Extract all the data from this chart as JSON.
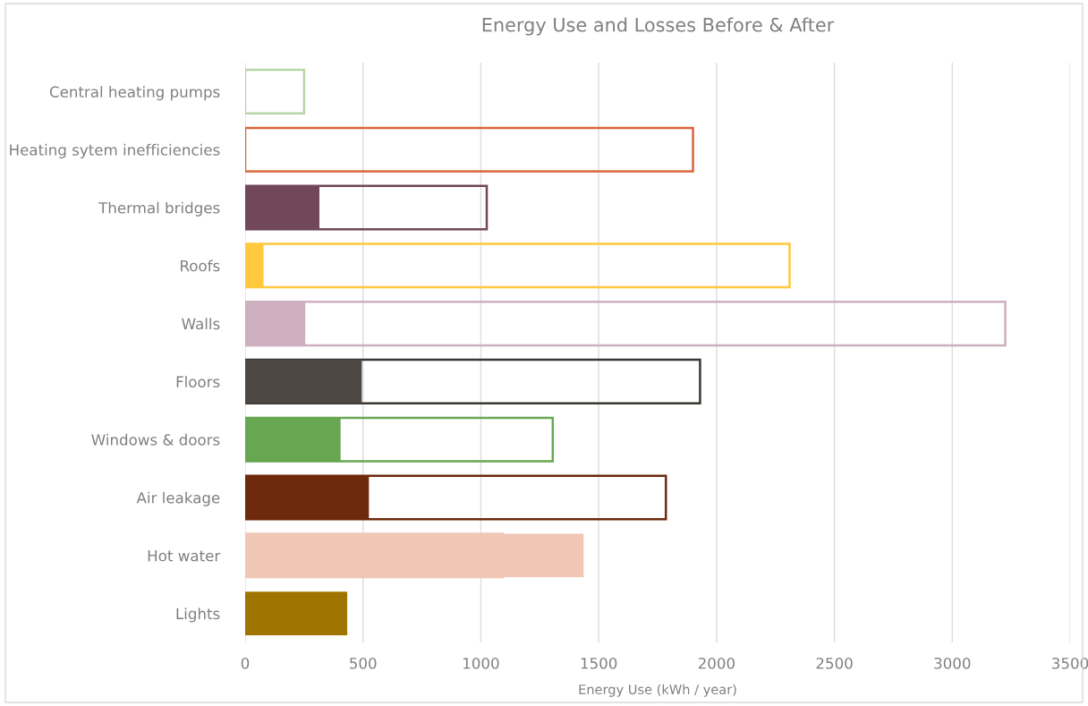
{
  "chart_data": {
    "type": "bar",
    "orientation": "horizontal",
    "title": "Energy Use and Losses Before & After",
    "xlabel": "Energy Use (kWh / year)",
    "categories": [
      "Central heating pumps",
      "Heating sytem inefficiencies",
      "Thermal bridges",
      "Roofs",
      "Walls",
      "Floors",
      "Windows & doors",
      "Air leakage",
      "Hot water",
      "Lights"
    ],
    "series": [
      {
        "line_style": "solid",
        "colors": [
          "#b5d6a7",
          "#d9663a",
          "#71475a",
          "#ffc83d",
          "#cdafbf",
          "#3a3733",
          "#67a752",
          "#6e2a0c",
          "#f0c6b5",
          "#5a4a2a"
        ],
        "values": [
          250,
          1900,
          1025,
          2310,
          3225,
          1930,
          1305,
          1785,
          1095,
          null
        ]
      },
      {
        "colors": [
          null,
          null,
          "#71475a",
          "#ffc83d",
          "#cdafbf",
          "#4d4843",
          "#67a752",
          "#6e2a0c",
          "#f0c6b5",
          "#a07400"
        ],
        "values": [
          null,
          null,
          315,
          78,
          255,
          495,
          405,
          525,
          1436,
          433
        ]
      }
    ],
    "xlim": [
      0,
      3500
    ],
    "xticks": [
      0,
      500,
      1000,
      1500,
      2000,
      2500,
      3000,
      3500
    ],
    "grid": "x"
  }
}
